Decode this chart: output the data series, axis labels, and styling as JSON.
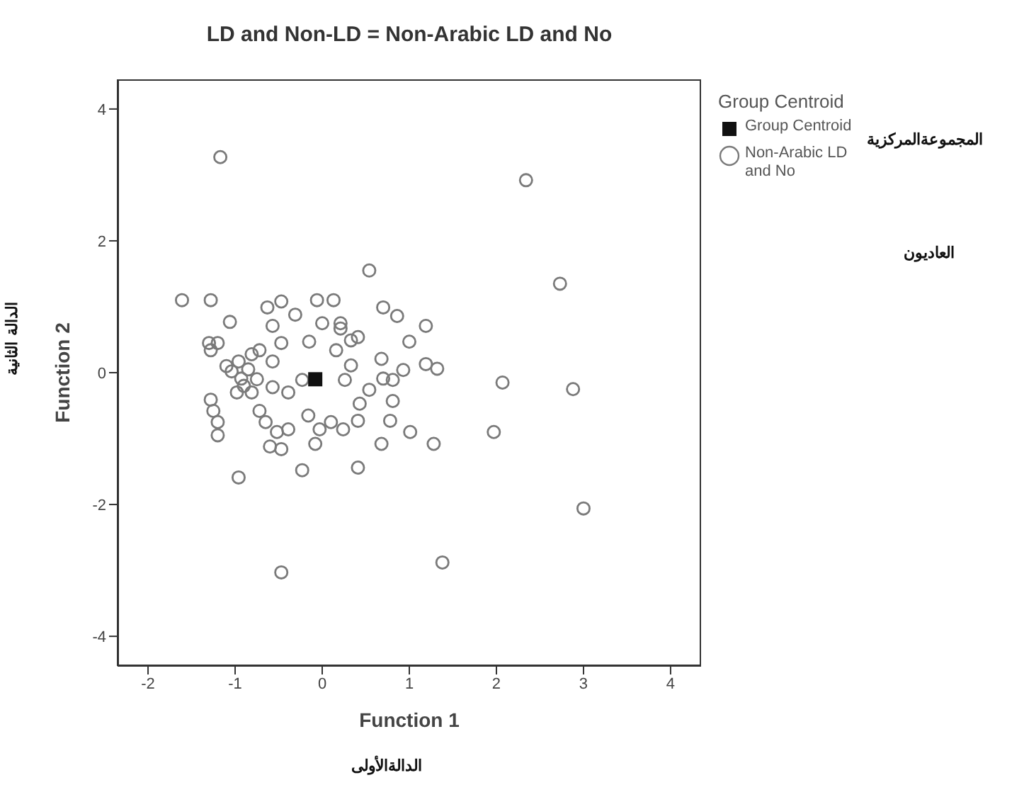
{
  "chart_data": {
    "type": "scatter",
    "title": "LD and Non-LD = Non-Arabic LD and No",
    "xlabel": "Function 1",
    "ylabel": "Function 2",
    "legend_title": "Group Centroid",
    "legend": "top right",
    "xlim": [
      -2.35,
      4.35
    ],
    "xticks": [
      -2,
      -1,
      0,
      1,
      2,
      3,
      4
    ],
    "ylim": [
      -4.45,
      4.45
    ],
    "yticks": [
      -4,
      -2,
      0,
      2,
      4
    ],
    "annotations": [
      "المجموعةالمركزية",
      "العاديون",
      "الدالة الثانية",
      "الدالةالأولى"
    ],
    "series": [
      {
        "name": "Group Centroid",
        "color": "#111111",
        "marker": "square",
        "x": [
          -0.08
        ],
        "values": [
          -0.1
        ]
      },
      {
        "name": "Non-Arabic LD and No",
        "color": "#7a7a7a",
        "marker": "circle",
        "x": [
          -1.17,
          2.34,
          2.73,
          3.0,
          -0.47,
          1.38,
          2.07,
          2.88,
          1.97,
          1.28,
          1.01,
          0.68,
          0.41,
          -0.23,
          0.54,
          0.7,
          0.86,
          1.19,
          1.0,
          1.19,
          1.32,
          0.68,
          0.93,
          0.7,
          0.81,
          0.54,
          0.81,
          0.43,
          0.78,
          0.41,
          0.24,
          0.1,
          -0.03,
          -0.16,
          -0.08,
          -0.39,
          0.33,
          0.26,
          0.41,
          0.16,
          0.21,
          0.0,
          -0.15,
          -0.06,
          0.13,
          -0.31,
          -0.23,
          -0.39,
          -1.61,
          -1.28,
          -1.06,
          -1.3,
          -1.28,
          -0.63,
          -0.47,
          -0.57,
          -0.47,
          -0.81,
          -0.72,
          -0.96,
          -0.57,
          -1.04,
          -0.93,
          -0.98,
          -0.81,
          -0.57,
          -1.28,
          -1.25,
          -1.2,
          -1.2,
          -0.72,
          -0.65,
          -0.52,
          -0.6,
          -0.47,
          -0.96,
          0.21,
          0.33,
          -1.1,
          -0.9,
          -0.85,
          -1.2,
          -0.75
        ],
        "values": [
          3.27,
          2.92,
          1.35,
          -2.06,
          -3.03,
          -2.88,
          -0.15,
          -0.25,
          -0.9,
          -1.08,
          -0.9,
          -1.08,
          -1.44,
          -1.48,
          1.55,
          0.99,
          0.86,
          0.71,
          0.47,
          0.13,
          0.06,
          0.21,
          0.04,
          -0.09,
          -0.11,
          -0.26,
          -0.43,
          -0.47,
          -0.73,
          -0.73,
          -0.86,
          -0.75,
          -0.86,
          -0.65,
          -1.08,
          -0.86,
          0.11,
          -0.11,
          0.54,
          0.34,
          0.75,
          0.75,
          0.47,
          1.1,
          1.1,
          0.88,
          -0.11,
          -0.3,
          1.1,
          1.1,
          0.77,
          0.45,
          0.34,
          0.99,
          1.08,
          0.71,
          0.45,
          0.28,
          0.34,
          0.17,
          0.17,
          0.02,
          -0.09,
          -0.3,
          -0.3,
          -0.22,
          -0.41,
          -0.58,
          -0.75,
          -0.95,
          -0.58,
          -0.75,
          -0.9,
          -1.12,
          -1.16,
          -1.59,
          0.67,
          0.49,
          0.1,
          -0.2,
          0.05,
          0.45,
          -0.1
        ]
      }
    ]
  }
}
